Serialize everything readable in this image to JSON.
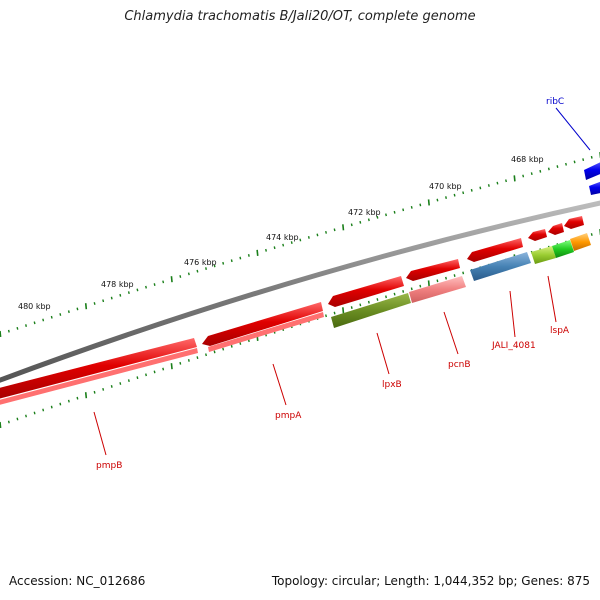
{
  "title": "Chlamydia trachomatis B/Jali20/OT, complete genome",
  "footer": {
    "accession": "Accession: NC_012686",
    "topology": "Topology: circular; Length: 1,044,352 bp; Genes: 875"
  },
  "colors": {
    "backbone": "#7a7a7a",
    "tick": "#1a7f1a",
    "label_red": "#cc0000",
    "label_blue": "#0000cc"
  },
  "scale_labels": [
    "480 kbp",
    "478 kbp",
    "476 kbp",
    "474 kbp",
    "472 kbp",
    "470 kbp",
    "468 kbp"
  ],
  "genes": [
    {
      "label": "pmpB",
      "color": "#e60000",
      "label_color": "#cc0000"
    },
    {
      "label": "pmpA",
      "color": "#e60000",
      "label_color": "#cc0000"
    },
    {
      "label": "lpxB",
      "color": "#6b8e23",
      "label_color": "#cc0000"
    },
    {
      "label": "pcnB",
      "color": "#f08080",
      "label_color": "#cc0000"
    },
    {
      "label": "JALI_4081",
      "color": "#4682b4",
      "label_color": "#cc0000"
    },
    {
      "label": "lspA",
      "color": "#9acd32",
      "label_color": "#cc0000"
    },
    {
      "label": "ribC",
      "color": "#0000ee",
      "label_color": "#0000cc"
    }
  ]
}
